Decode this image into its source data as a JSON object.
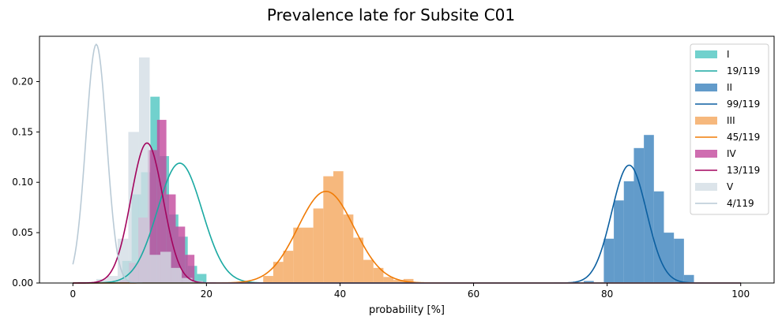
{
  "chart_data": {
    "type": "bar",
    "title": "Prevalence late for Subsite C01",
    "xlabel": "probability [%]",
    "ylabel": "",
    "xlim": [
      -5,
      105
    ],
    "ylim": [
      0,
      0.245
    ],
    "xticks": [
      0,
      20,
      40,
      60,
      80,
      100
    ],
    "xtick_labels": [
      "0",
      "20",
      "40",
      "60",
      "80",
      "100"
    ],
    "yticks": [
      0.0,
      0.05,
      0.1,
      0.15,
      0.2
    ],
    "ytick_labels": [
      "0.00",
      "0.05",
      "0.10",
      "0.15",
      "0.20"
    ],
    "legend_position": "top-right",
    "grid": false,
    "series": [
      {
        "name": "I",
        "bar_color": "#4ec6c0",
        "histogram": {
          "edges": [
            6.0,
            7.4,
            8.8,
            10.2,
            11.6,
            13.0,
            14.4,
            15.8,
            17.2,
            18.6,
            20.0
          ],
          "values": [
            0.002,
            0.022,
            0.088,
            0.11,
            0.185,
            0.126,
            0.068,
            0.046,
            0.017,
            0.009
          ]
        },
        "fit_label": "19/119",
        "fit_color": "#1aa9a2",
        "fit": {
          "mean": 16.0,
          "sd": 3.35,
          "peak": 0.119
        }
      },
      {
        "name": "II",
        "bar_color": "#3b82bd",
        "histogram": {
          "edges": [
            76.5,
            78.0,
            79.5,
            81.0,
            82.5,
            84.0,
            85.5,
            87.0,
            88.5,
            90.0,
            91.5,
            93.0
          ],
          "values": [
            0.002,
            0.0,
            0.044,
            0.082,
            0.101,
            0.134,
            0.147,
            0.091,
            0.05,
            0.044,
            0.008
          ]
        },
        "fit_label": "99/119",
        "fit_color": "#0b5fa0",
        "fit": {
          "mean": 83.3,
          "sd": 2.6,
          "peak": 0.117
        }
      },
      {
        "name": "III",
        "bar_color": "#f4a65d",
        "histogram": {
          "edges": [
            28.5,
            30.0,
            31.5,
            33.0,
            34.5,
            36.0,
            37.5,
            39.0,
            40.5,
            42.0,
            43.5,
            45.0,
            46.5,
            48.0,
            49.5,
            51.0
          ],
          "values": [
            0.007,
            0.021,
            0.032,
            0.055,
            0.055,
            0.074,
            0.106,
            0.111,
            0.068,
            0.045,
            0.023,
            0.015,
            0.006,
            0.003,
            0.004
          ]
        },
        "fit_label": "45/119",
        "fit_color": "#f07b06",
        "fit": {
          "mean": 37.9,
          "sd": 4.2,
          "peak": 0.091
        }
      },
      {
        "name": "IV",
        "bar_color": "#c3499c",
        "histogram": {
          "edges": [
            7.0,
            8.4,
            9.8,
            11.2,
            12.6,
            14.0,
            15.4,
            16.8,
            18.2
          ],
          "values": [
            0.003,
            0.02,
            0.065,
            0.132,
            0.162,
            0.088,
            0.056,
            0.028
          ]
        },
        "fit_label": "13/119",
        "fit_color": "#a3045e",
        "fit": {
          "mean": 11.1,
          "sd": 2.4,
          "peak": 0.139
        }
      },
      {
        "name": "V",
        "bar_color": "#d3dde5",
        "histogram": {
          "edges": [
            3.5,
            5.1,
            6.7,
            8.3,
            9.9,
            11.5,
            13.1,
            14.7,
            16.3,
            17.9,
            19.5
          ],
          "values": [
            0.004,
            0.007,
            0.044,
            0.15,
            0.224,
            0.028,
            0.031,
            0.015,
            0.005,
            0.002
          ]
        },
        "fit_label": "4/119",
        "fit_color": "#b9cad6",
        "fit": {
          "mean": 3.5,
          "sd": 1.55,
          "peak": 0.237
        }
      }
    ]
  }
}
